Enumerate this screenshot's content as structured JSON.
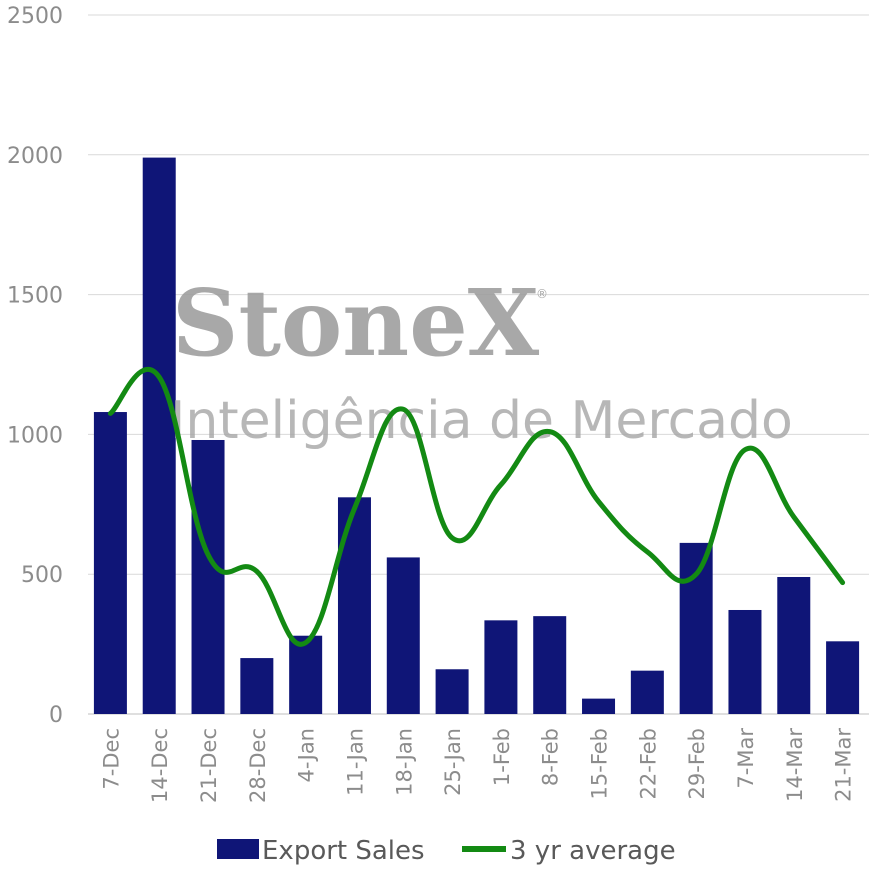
{
  "chart_data": {
    "type": "bar",
    "categories": [
      "7-Dec",
      "14-Dec",
      "21-Dec",
      "28-Dec",
      "4-Jan",
      "11-Jan",
      "18-Jan",
      "25-Jan",
      "1-Feb",
      "8-Feb",
      "15-Feb",
      "22-Feb",
      "29-Feb",
      "7-Mar",
      "14-Mar",
      "21-Mar"
    ],
    "series": [
      {
        "name": "Export Sales",
        "type": "bar",
        "color": "#0f1577",
        "values": [
          1080,
          1990,
          980,
          200,
          280,
          775,
          560,
          160,
          335,
          350,
          55,
          155,
          612,
          372,
          490,
          260
        ]
      },
      {
        "name": "3 yr average",
        "type": "line",
        "smooth": true,
        "color": "#138a13",
        "values": [
          1075,
          1205,
          570,
          510,
          255,
          735,
          1090,
          630,
          820,
          1010,
          760,
          580,
          500,
          945,
          705,
          470
        ]
      }
    ],
    "yticks": [
      0,
      500,
      1000,
      1500,
      2000,
      2500
    ],
    "ylim": [
      0,
      2500
    ],
    "grid": true,
    "legend": "bottom",
    "title": "",
    "xlabel": "",
    "ylabel": ""
  },
  "watermark": {
    "main": "StoneX",
    "reg": "®",
    "sub": "Inteligência de Mercado"
  }
}
